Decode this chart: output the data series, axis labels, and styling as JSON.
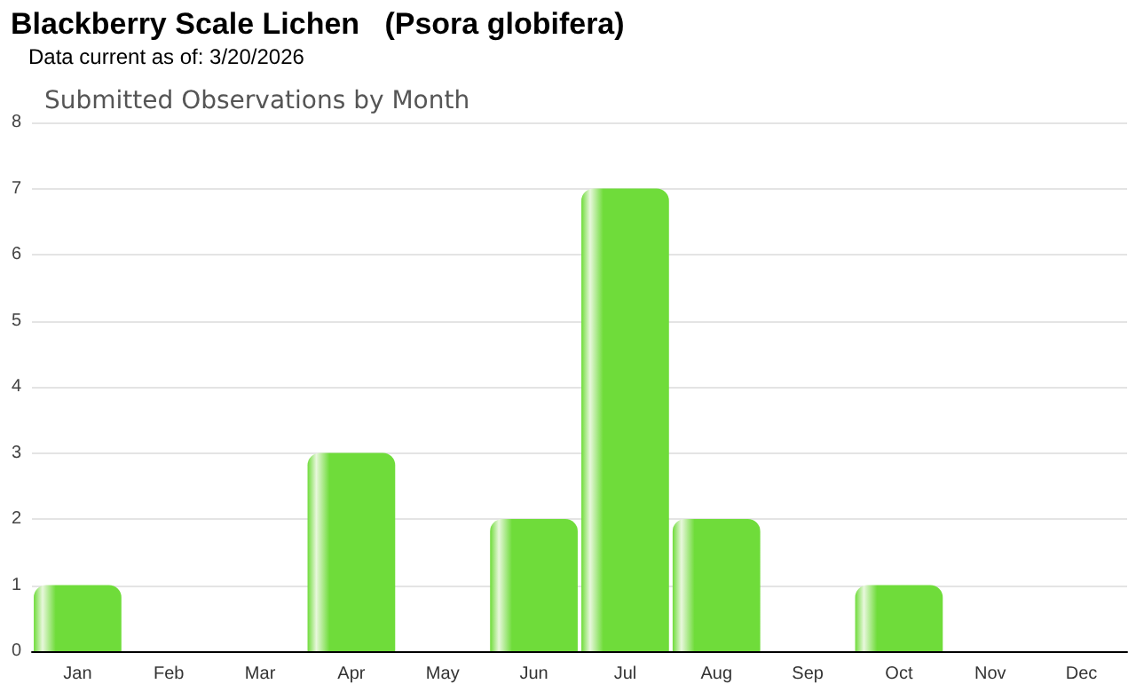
{
  "chart_data": {
    "type": "bar",
    "title": "Blackberry Scale Lichen   (Psora globifera)",
    "subtitle": "Data current as of: 3/20/2026",
    "annotations": [
      "Submitted Observations by Month"
    ],
    "categories": [
      "Jan",
      "Feb",
      "Mar",
      "Apr",
      "May",
      "Jun",
      "Jul",
      "Aug",
      "Sep",
      "Oct",
      "Nov",
      "Dec"
    ],
    "values": [
      1,
      0,
      0,
      3,
      0,
      2,
      7,
      2,
      0,
      1,
      0,
      0
    ],
    "color": "#6fdc3a",
    "ylim": [
      0,
      8
    ],
    "yticks": [
      0,
      1,
      2,
      3,
      4,
      5,
      6,
      7,
      8
    ],
    "grid": "y"
  }
}
